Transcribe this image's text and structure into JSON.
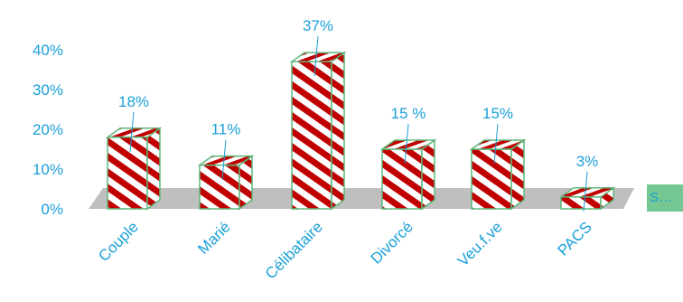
{
  "chart_data": {
    "type": "bar",
    "style": "3d-column",
    "categories": [
      "Couple",
      "Marié",
      "Célibataire",
      "Divorcé",
      "Veu.f.ve",
      "PACS"
    ],
    "values": [
      18,
      11,
      37,
      15,
      15,
      3
    ],
    "data_labels": [
      "18%",
      "11%",
      "37%",
      "15 %",
      "15%",
      "3%"
    ],
    "yticks": [
      "0%",
      "10%",
      "20%",
      "30%",
      "40%"
    ],
    "ylim": [
      0,
      40
    ],
    "grid": false,
    "legend": {
      "position": "right",
      "text": "S…"
    },
    "colors": {
      "text": "#1aa0d8",
      "fill_red": "#c00000",
      "fill_white": "#ffffff",
      "edge": "#5cb87a",
      "floor": "#bfbfbf",
      "leader": "#1aa0d8"
    }
  }
}
